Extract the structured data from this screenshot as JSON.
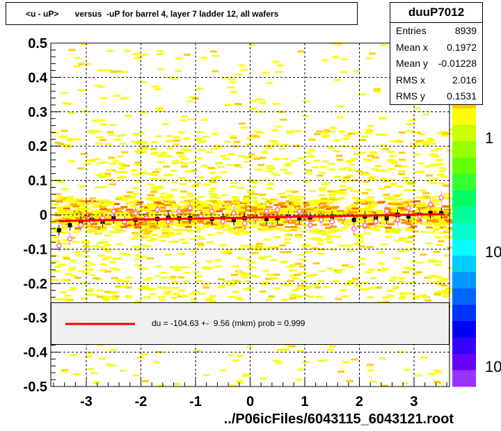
{
  "title": "<u - uP>       versus  -uP for barrel 4, layer 7 ladder 12, all wafers",
  "stats": {
    "name": "duuP7012",
    "rows": [
      {
        "label": "Entries",
        "value": "8939"
      },
      {
        "label": "Mean x",
        "value": "0.1972"
      },
      {
        "label": "Mean y",
        "value": "-0.01228"
      },
      {
        "label": "RMS x",
        "value": "2.016"
      },
      {
        "label": "RMS y",
        "value": "0.1531"
      }
    ]
  },
  "fit_legend": "du = -104.63 +-  9.56 (mkm) prob = 0.999",
  "x_axis_title": "../P06icFiles/6043115_6043121.root",
  "colors": {
    "fit_line": "#ff0000",
    "mean_marker": "#000000",
    "rms_marker": "#ff66aa"
  },
  "chart_data": {
    "type": "heatmap",
    "xlim": [
      -3.65,
      3.65
    ],
    "ylim": [
      -0.5,
      0.5
    ],
    "x_ticks": [
      "-3",
      "-2",
      "-1",
      "0",
      "1",
      "2",
      "3"
    ],
    "y_ticks": [
      "-0.5",
      "-0.4",
      "-0.3",
      "-0.2",
      "-0.1",
      "0",
      "0.1",
      "0.2",
      "0.3",
      "0.4",
      "0.5"
    ],
    "colorbar_labels": [
      "1",
      "10",
      "10"
    ],
    "grid": true,
    "fit": {
      "x0": -3.5,
      "x1": 3.55,
      "y0": -0.018,
      "y1": 0.002
    },
    "profile_x": [
      -3.5,
      -3.3,
      -3.1,
      -2.9,
      -2.7,
      -2.5,
      -2.3,
      -2.1,
      -1.9,
      -1.7,
      -1.5,
      -1.3,
      -1.1,
      -0.9,
      -0.7,
      -0.5,
      -0.3,
      -0.1,
      0.1,
      0.3,
      0.5,
      0.7,
      0.9,
      1.1,
      1.3,
      1.5,
      1.7,
      1.9,
      2.1,
      2.3,
      2.5,
      2.7,
      2.9,
      3.1,
      3.3,
      3.5
    ],
    "profile_mean": [
      -0.045,
      -0.03,
      -0.02,
      -0.015,
      -0.02,
      -0.01,
      -0.02,
      -0.015,
      -0.01,
      -0.012,
      -0.008,
      -0.01,
      -0.01,
      -0.005,
      -0.012,
      -0.01,
      -0.015,
      -0.01,
      -0.008,
      -0.012,
      -0.01,
      -0.005,
      -0.01,
      -0.008,
      -0.01,
      -0.005,
      -0.01,
      -0.015,
      -0.005,
      -0.01,
      -0.01,
      0.0,
      -0.005,
      0.0,
      0.005,
      0.005
    ],
    "profile_rms": [
      -0.09,
      -0.07,
      -0.03,
      -0.02,
      -0.01,
      0.01,
      -0.02,
      0.005,
      -0.01,
      0.015,
      -0.02,
      0.01,
      0.02,
      -0.005,
      0.01,
      -0.02,
      0.005,
      -0.025,
      -0.01,
      0.01,
      0.015,
      -0.01,
      0.01,
      -0.03,
      -0.015,
      -0.02,
      -0.01,
      -0.04,
      -0.03,
      -0.02,
      0.01,
      -0.015,
      0.02,
      -0.005,
      0.03,
      0.05
    ]
  }
}
